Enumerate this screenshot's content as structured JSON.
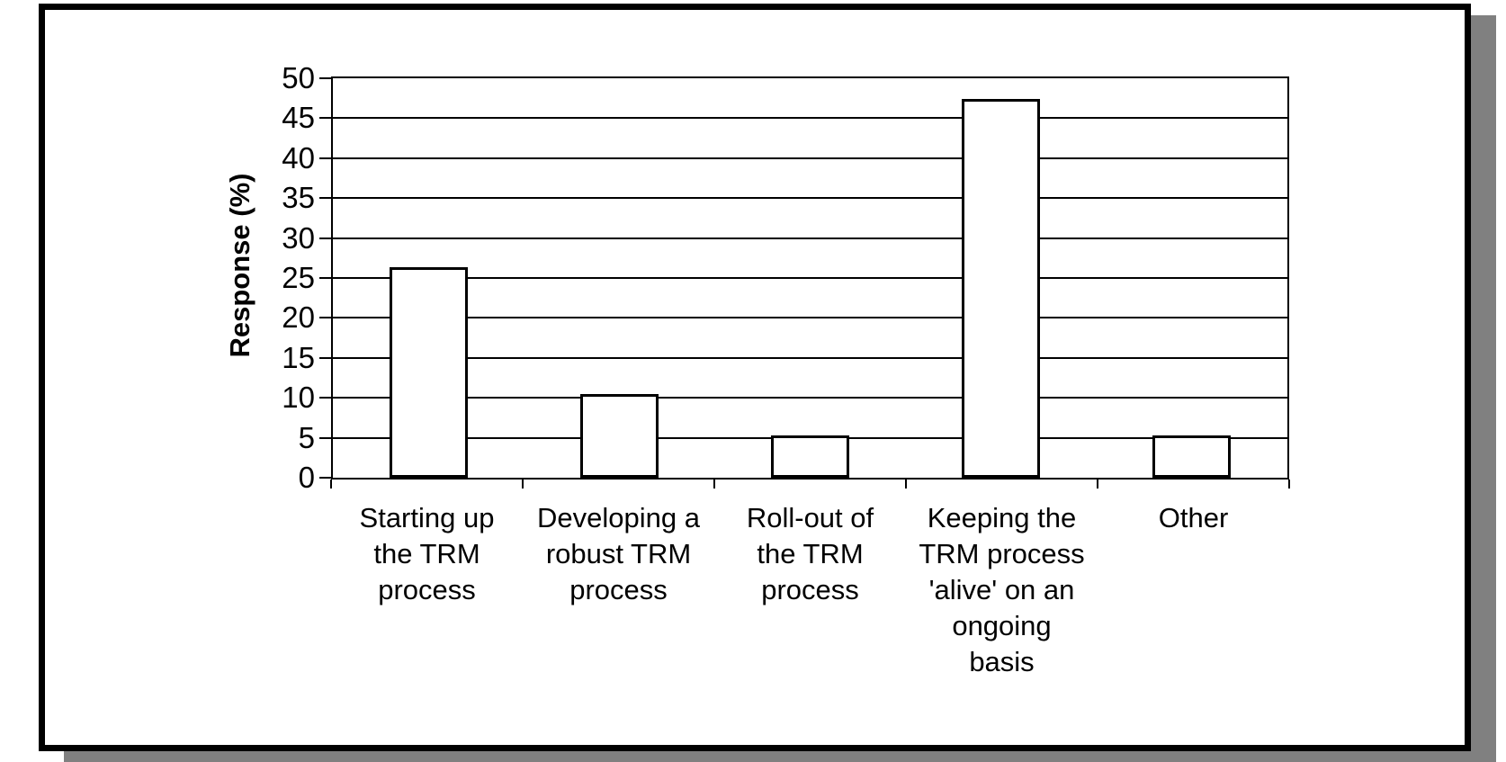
{
  "figure": {
    "background": "#ffffff",
    "frame_border_color": "#000000",
    "shadow_color": "#808080",
    "text_color": "#000000"
  },
  "chart_data": {
    "type": "bar",
    "title": "",
    "categories": [
      "Starting up the TRM process",
      "Developing a robust TRM process",
      "Roll-out of the TRM process",
      "Keeping the TRM process 'alive' on an ongoing basis",
      "Other"
    ],
    "category_label_lines": [
      [
        "Starting up",
        "the TRM",
        "process"
      ],
      [
        "Developing a",
        "robust TRM",
        "process"
      ],
      [
        "Roll-out of",
        "the TRM",
        "process"
      ],
      [
        "Keeping the",
        "TRM process",
        "'alive' on an",
        "ongoing",
        "basis"
      ],
      [
        "Other"
      ]
    ],
    "values": [
      26.3,
      10.5,
      5.3,
      47.4,
      5.3
    ],
    "xlabel": "",
    "ylabel": "Response (%)",
    "ylim": [
      0,
      50
    ],
    "yticks": [
      0,
      5,
      10,
      15,
      20,
      25,
      30,
      35,
      40,
      45,
      50
    ],
    "grid": "horizontal",
    "legend": "none",
    "bar_fill": "#ffffff",
    "bar_border_color": "#000000"
  }
}
